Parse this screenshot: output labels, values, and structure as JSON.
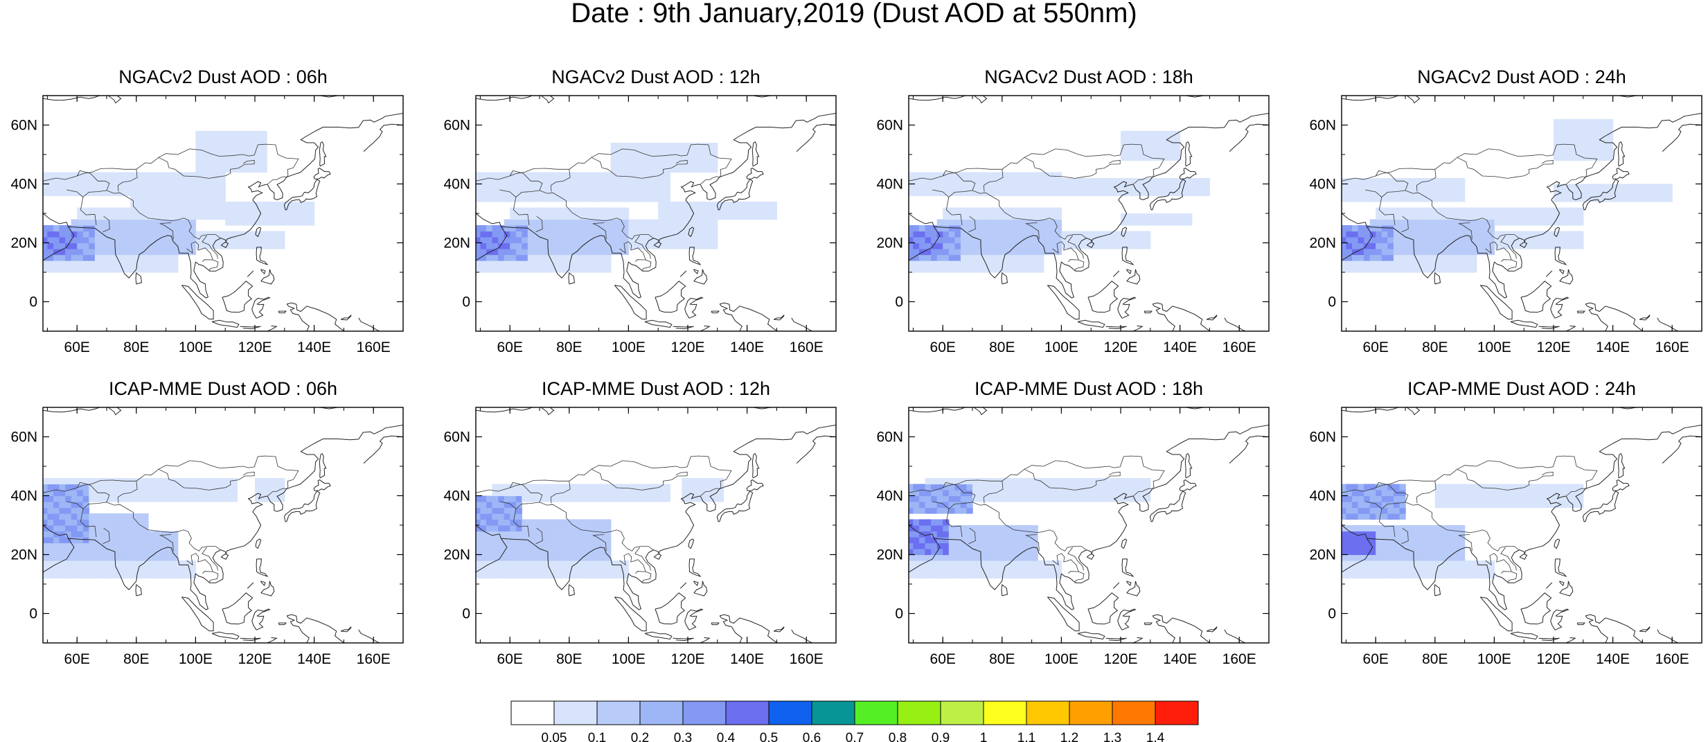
{
  "figure": {
    "title": "Date : 9th January,2019 (Dust AOD at 550nm)"
  },
  "axes": {
    "x_ticks": [
      "60E",
      "80E",
      "100E",
      "120E",
      "140E",
      "160E"
    ],
    "y_ticks": [
      "60N",
      "40N",
      "20N",
      "0"
    ]
  },
  "panels": [
    {
      "title": "NGACv2 Dust AOD : 06h",
      "model": "NGACv2",
      "hour": "06h"
    },
    {
      "title": "NGACv2 Dust AOD : 12h",
      "model": "NGACv2",
      "hour": "12h"
    },
    {
      "title": "NGACv2 Dust AOD : 18h",
      "model": "NGACv2",
      "hour": "18h"
    },
    {
      "title": "NGACv2 Dust AOD : 24h",
      "model": "NGACv2",
      "hour": "24h"
    },
    {
      "title": "ICAP-MME Dust AOD : 06h",
      "model": "ICAP-MME",
      "hour": "06h"
    },
    {
      "title": "ICAP-MME Dust AOD : 12h",
      "model": "ICAP-MME",
      "hour": "12h"
    },
    {
      "title": "ICAP-MME Dust AOD : 18h",
      "model": "ICAP-MME",
      "hour": "18h"
    },
    {
      "title": "ICAP-MME Dust AOD : 24h",
      "model": "ICAP-MME",
      "hour": "24h"
    }
  ],
  "colorbar": {
    "labels": [
      "0.05",
      "0.1",
      "0.2",
      "0.3",
      "0.4",
      "0.5",
      "0.6",
      "0.7",
      "0.8",
      "0.9",
      "1",
      "1.1",
      "1.2",
      "1.3",
      "1.4"
    ],
    "colors": [
      "#ffffff",
      "#d8e4fb",
      "#b9cbf8",
      "#9db6f6",
      "#8499f4",
      "#6b6ff0",
      "#0f62ef",
      "#079595",
      "#55ef25",
      "#97ef14",
      "#bdef47",
      "#ffff1e",
      "#ffc800",
      "#ffa000",
      "#ff7800",
      "#ff1e0a"
    ]
  }
}
